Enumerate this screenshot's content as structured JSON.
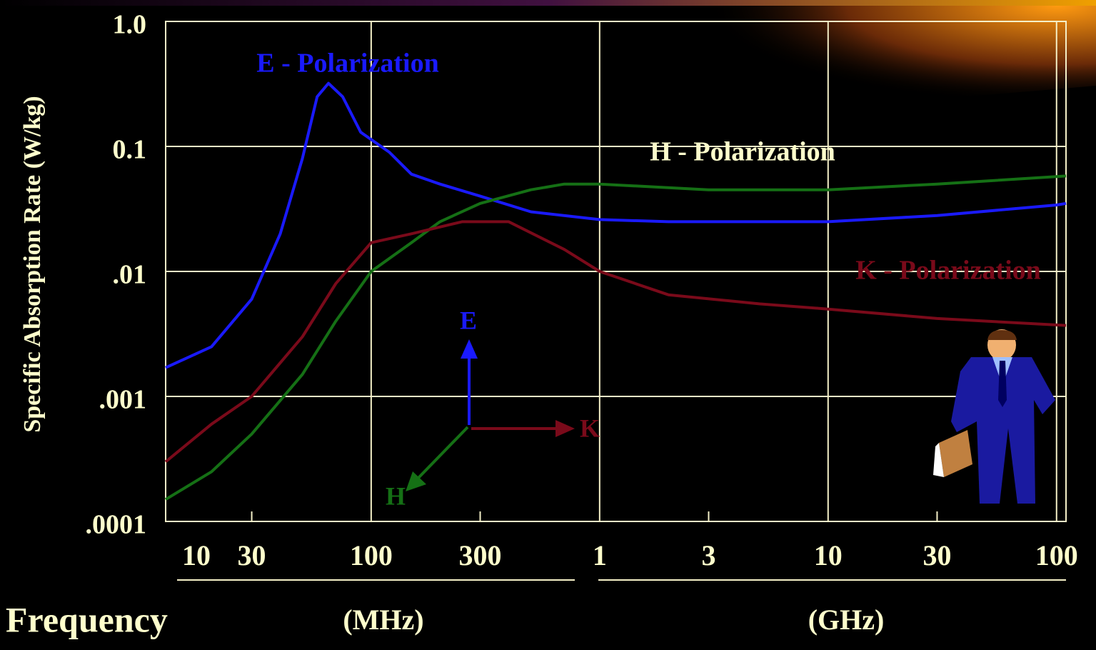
{
  "chart_data": {
    "type": "line",
    "y_label": "Specific Absorption Rate (W/kg)",
    "x_label": "Frequency",
    "x_unit_groups": [
      "(MHz)",
      "(GHz)"
    ],
    "annotations": [
      "E",
      "K",
      "H"
    ],
    "log_x": true,
    "log_y": true,
    "grid": true,
    "xlim": [
      12.6,
      110000
    ],
    "ylim": [
      0.0001,
      1
    ],
    "xticks": [
      {
        "value": 10,
        "label": "10"
      },
      {
        "value": 30,
        "label": "30"
      },
      {
        "value": 100,
        "label": "100"
      },
      {
        "value": 300,
        "label": "300"
      },
      {
        "value": 1000,
        "label": "1"
      },
      {
        "value": 3000,
        "label": "3"
      },
      {
        "value": 10000,
        "label": "10"
      },
      {
        "value": 30000,
        "label": "30"
      },
      {
        "value": 100000,
        "label": "100"
      }
    ],
    "yticks": [
      {
        "value": 1,
        "label": "1.0"
      },
      0.1,
      {
        "value": 0.01,
        "label": ".01"
      },
      {
        "value": 0.001,
        "label": ".001"
      },
      {
        "value": 0.0001,
        "label": ".0001"
      }
    ],
    "series": [
      {
        "name": "E - Polarization",
        "color": "#1a1aff",
        "x": [
          12.6,
          20,
          30,
          40,
          50,
          58,
          65,
          75,
          90,
          120,
          150,
          200,
          300,
          500,
          1000,
          2000,
          10000,
          30000,
          100000,
          110000
        ],
        "values": [
          0.0017,
          0.0025,
          0.006,
          0.02,
          0.08,
          0.25,
          0.32,
          0.25,
          0.13,
          0.09,
          0.06,
          0.05,
          0.04,
          0.03,
          0.026,
          0.025,
          0.025,
          0.028,
          0.034,
          0.035
        ]
      },
      {
        "name": "H - Polarization",
        "color": "#157015",
        "x": [
          12.6,
          20,
          30,
          50,
          70,
          100,
          150,
          200,
          300,
          500,
          700,
          1000,
          3000,
          10000,
          30000,
          110000
        ],
        "values": [
          0.00015,
          0.00025,
          0.0005,
          0.0015,
          0.004,
          0.01,
          0.017,
          0.025,
          0.035,
          0.045,
          0.05,
          0.05,
          0.045,
          0.045,
          0.05,
          0.058
        ]
      },
      {
        "name": "K - Polarization",
        "color": "#7a0a1a",
        "x": [
          12.6,
          20,
          30,
          50,
          70,
          100,
          150,
          250,
          400,
          700,
          1000,
          2000,
          5000,
          10000,
          30000,
          110000
        ],
        "values": [
          0.0003,
          0.0006,
          0.001,
          0.003,
          0.008,
          0.017,
          0.02,
          0.025,
          0.025,
          0.015,
          0.01,
          0.0065,
          0.0055,
          0.005,
          0.0042,
          0.0037
        ]
      }
    ]
  }
}
